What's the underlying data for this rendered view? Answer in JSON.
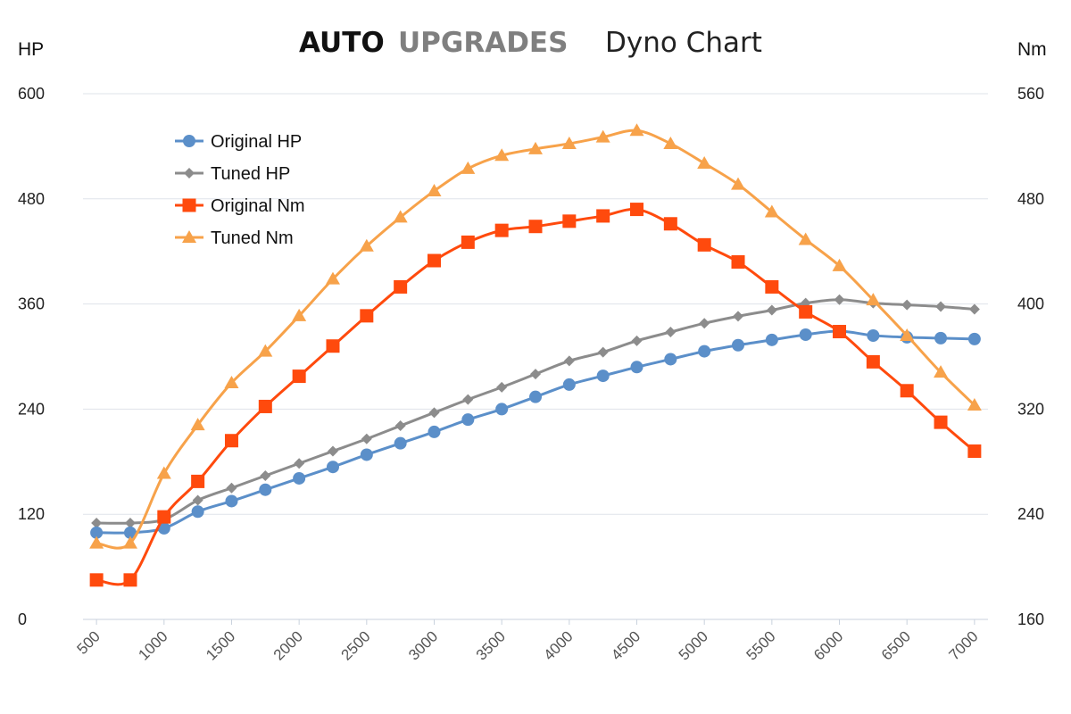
{
  "title": {
    "brand_bold": "AUTO",
    "brand_grey": "UPGRADES",
    "subtitle": "Dyno Chart"
  },
  "chart_data": {
    "type": "line",
    "x": [
      500,
      750,
      1000,
      1250,
      1500,
      1750,
      2000,
      2250,
      2500,
      2750,
      3000,
      3250,
      3500,
      3750,
      4000,
      4250,
      4500,
      4750,
      5000,
      5250,
      5500,
      5750,
      6000,
      6250,
      6500,
      6750,
      7000
    ],
    "x_tick_labels": [
      "500",
      "1000",
      "1500",
      "2000",
      "2500",
      "3000",
      "3500",
      "4000",
      "4500",
      "5000",
      "5500",
      "6000",
      "6500",
      "7000"
    ],
    "left_axis": {
      "label": "HP",
      "min": 0,
      "max": 600,
      "ticks": [
        "0",
        "120",
        "240",
        "360",
        "480",
        "600"
      ]
    },
    "right_axis": {
      "label": "Nm",
      "min": 160,
      "max": 560,
      "ticks": [
        "160",
        "240",
        "320",
        "400",
        "480",
        "560"
      ]
    },
    "grid": true,
    "legend_position": "top-left",
    "series": [
      {
        "name": "Original HP",
        "axis": "left",
        "marker": "circle",
        "color": "#5b8fc9",
        "values": [
          99,
          99,
          104,
          123,
          135,
          148,
          161,
          174,
          188,
          201,
          214,
          228,
          240,
          254,
          268,
          278,
          288,
          297,
          306,
          313,
          319,
          325,
          329,
          324,
          322,
          321,
          320
        ]
      },
      {
        "name": "Tuned HP",
        "axis": "left",
        "marker": "diamond",
        "color": "#8c8c8c",
        "values": [
          110,
          110,
          114,
          136,
          150,
          164,
          178,
          192,
          206,
          221,
          236,
          251,
          265,
          280,
          295,
          305,
          318,
          328,
          338,
          346,
          353,
          361,
          365,
          361,
          359,
          357,
          354
        ]
      },
      {
        "name": "Original Nm",
        "axis": "right",
        "marker": "square",
        "color": "#ff4a0d",
        "values": [
          190,
          190,
          238,
          265,
          296,
          322,
          345,
          368,
          391,
          413,
          433,
          447,
          456,
          459,
          463,
          467,
          472,
          461,
          445,
          432,
          413,
          394,
          379,
          356,
          334,
          310,
          288
        ]
      },
      {
        "name": "Tuned Nm",
        "axis": "right",
        "marker": "triangle",
        "color": "#f7a24a",
        "values": [
          218,
          218,
          271,
          308,
          340,
          364,
          391,
          419,
          444,
          466,
          486,
          503,
          513,
          518,
          522,
          527,
          532,
          522,
          507,
          491,
          470,
          449,
          429,
          403,
          376,
          348,
          323
        ]
      }
    ]
  }
}
